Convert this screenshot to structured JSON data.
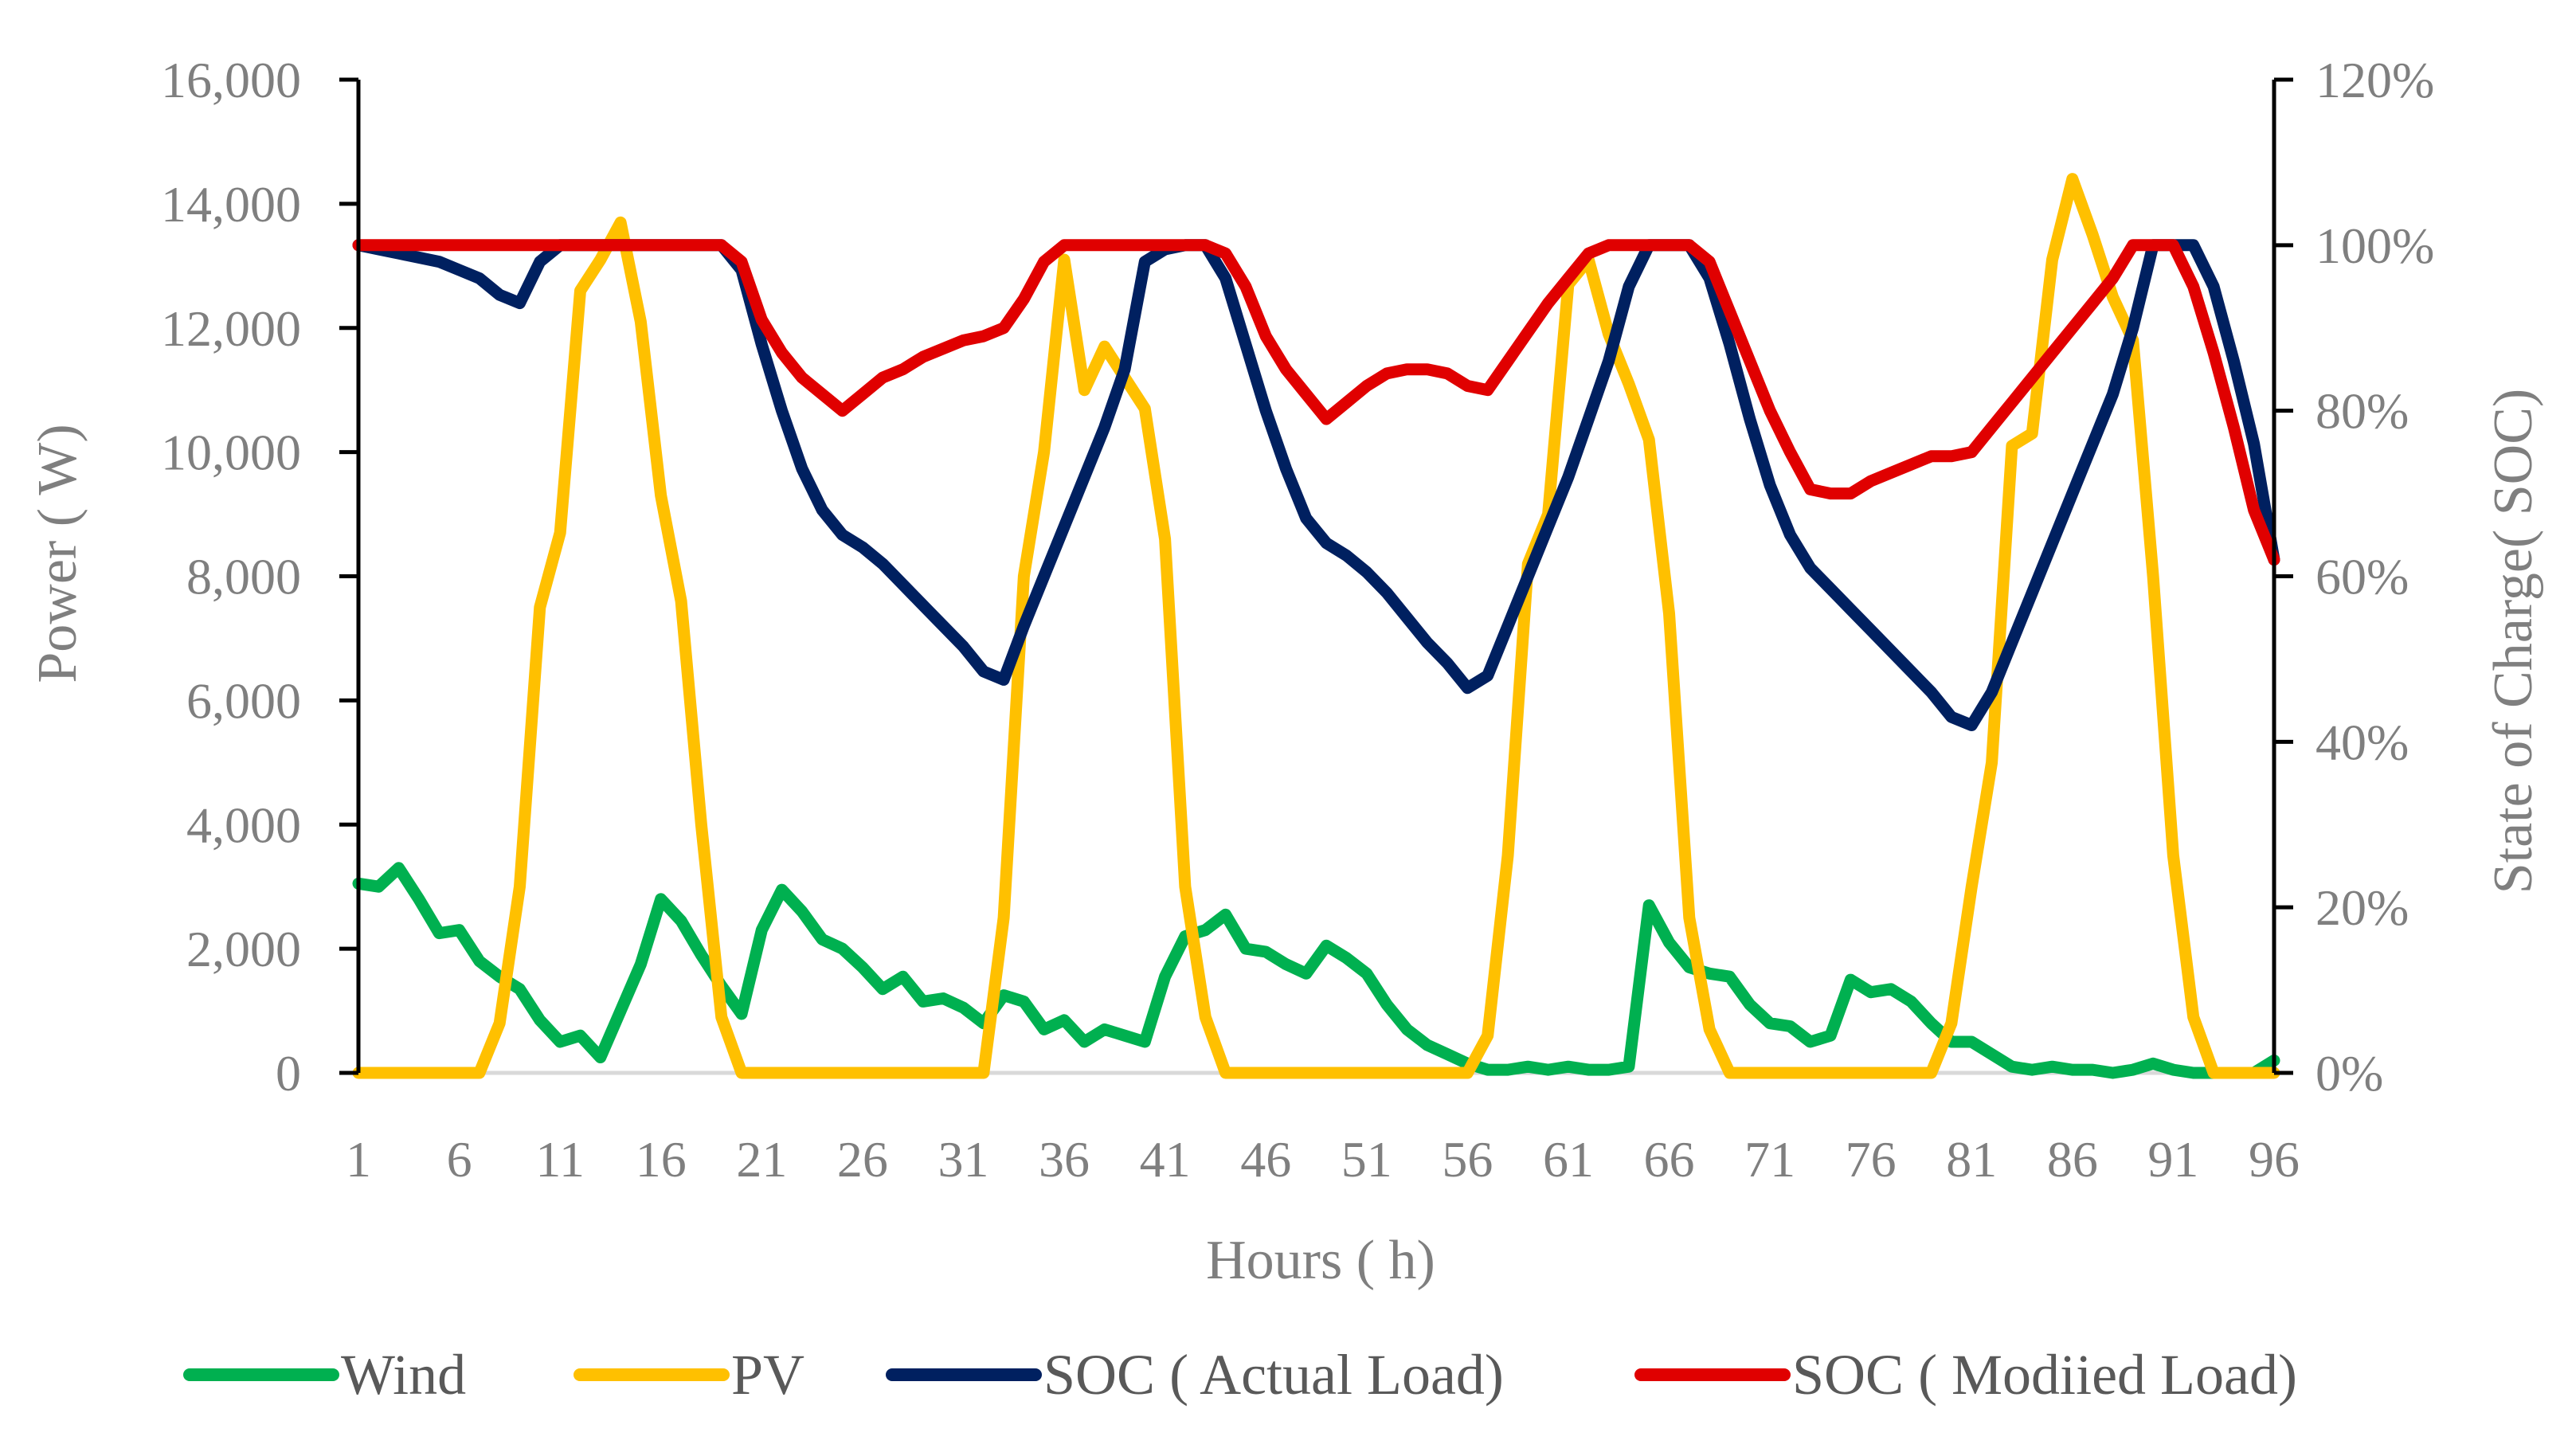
{
  "chart_data": {
    "type": "line",
    "title": "",
    "xlabel": "Hours ( h)",
    "ylabel": "Power ( W)",
    "y2label": "State of Charge( SOC)",
    "xlim": [
      1,
      96
    ],
    "ylim": [
      0,
      16000
    ],
    "y2lim": [
      0,
      120
    ],
    "x_ticks": [
      1,
      6,
      11,
      16,
      21,
      26,
      31,
      36,
      41,
      46,
      51,
      56,
      61,
      66,
      71,
      76,
      81,
      86,
      91,
      96
    ],
    "y_ticks": [
      "0",
      "2,000",
      "4,000",
      "6,000",
      "8,000",
      "10,000",
      "12,000",
      "14,000",
      "16,000"
    ],
    "y2_ticks": [
      "0%",
      "20%",
      "40%",
      "60%",
      "80%",
      "100%",
      "120%"
    ],
    "legend_position": "bottom",
    "colors": {
      "wind": "#00b050",
      "pv": "#ffc000",
      "soc_actual": "#002060",
      "soc_modified": "#e00000",
      "axis": "#000000",
      "baseline": "#d9d9d9"
    },
    "series": [
      {
        "name": "Wind",
        "key": "wind",
        "axis": "left",
        "values": [
          3050,
          3000,
          3300,
          2800,
          2250,
          2300,
          1800,
          1550,
          1350,
          850,
          500,
          600,
          250,
          1000,
          1750,
          2800,
          2450,
          1900,
          1400,
          950,
          2300,
          2950,
          2600,
          2150,
          2000,
          1700,
          1350,
          1550,
          1150,
          1200,
          1050,
          800,
          1250,
          1150,
          700,
          850,
          500,
          700,
          600,
          500,
          1550,
          2200,
          2300,
          2550,
          2000,
          1950,
          1750,
          1600,
          2050,
          1850,
          1600,
          1100,
          700,
          450,
          300,
          150,
          50,
          50,
          100,
          50,
          100,
          50,
          50,
          100,
          2700,
          2100,
          1700,
          1600,
          1550,
          1100,
          800,
          750,
          500,
          600,
          1500,
          1300,
          1350,
          1150,
          800,
          500,
          500,
          300,
          100,
          50,
          100,
          50,
          50,
          0,
          50,
          150,
          50,
          0,
          0,
          0,
          0,
          200
        ]
      },
      {
        "name": "PV",
        "key": "pv",
        "axis": "left",
        "values": [
          0,
          0,
          0,
          0,
          0,
          0,
          0,
          800,
          3000,
          7500,
          8700,
          12600,
          13100,
          13700,
          12100,
          9300,
          7600,
          4000,
          900,
          0,
          0,
          0,
          0,
          0,
          0,
          0,
          0,
          0,
          0,
          0,
          0,
          0,
          2500,
          8000,
          10000,
          13100,
          11000,
          11700,
          11200,
          10700,
          8600,
          3000,
          900,
          0,
          0,
          0,
          0,
          0,
          0,
          0,
          0,
          0,
          0,
          0,
          0,
          0,
          600,
          3500,
          8200,
          9000,
          12700,
          13100,
          11900,
          11100,
          10200,
          7400,
          2500,
          700,
          0,
          0,
          0,
          0,
          0,
          0,
          0,
          0,
          0,
          0,
          0,
          800,
          3000,
          5000,
          10100,
          10300,
          13100,
          14400,
          13500,
          12500,
          11800,
          8000,
          3500,
          900,
          0,
          0,
          0,
          0
        ]
      },
      {
        "name": "SOC ( Actual Load)",
        "key": "soc_actual",
        "axis": "right",
        "values": [
          100,
          99.5,
          99,
          98.5,
          98,
          97,
          96,
          94,
          93,
          98,
          100,
          100,
          100,
          100,
          100,
          100,
          100,
          100,
          100,
          97,
          88,
          80,
          73,
          68,
          65,
          63.5,
          61.5,
          59,
          56.5,
          54,
          51.5,
          48.5,
          47.5,
          54,
          60,
          66,
          72,
          78,
          85,
          98,
          99.5,
          100,
          100,
          96,
          88,
          80,
          73,
          67,
          64,
          62.5,
          60.5,
          58,
          55,
          52,
          49.5,
          46.5,
          48,
          54,
          60,
          66,
          72,
          79,
          86,
          95,
          100,
          100,
          100,
          96,
          88,
          79,
          71,
          65,
          61,
          58.5,
          56,
          53.5,
          51,
          48.5,
          46,
          43,
          42,
          46,
          52,
          58,
          64,
          70,
          76,
          82,
          90,
          100,
          100,
          100,
          95,
          86,
          76,
          62
        ]
      },
      {
        "name": "SOC ( Modiied Load)",
        "key": "soc_modified",
        "axis": "right",
        "values": [
          100,
          100,
          100,
          100,
          100,
          100,
          100,
          100,
          100,
          100,
          100,
          100,
          100,
          100,
          100,
          100,
          100,
          100,
          100,
          98,
          91,
          87,
          84,
          82,
          80,
          82,
          84,
          85,
          86.5,
          87.5,
          88.5,
          89,
          90,
          93.5,
          98,
          100,
          100,
          100,
          100,
          100,
          100,
          100,
          100,
          99,
          95,
          89,
          85,
          82,
          79,
          81,
          83,
          84.5,
          85,
          85,
          84.5,
          83,
          82.5,
          86,
          89.5,
          93,
          96,
          99,
          100,
          100,
          100,
          100,
          100,
          98,
          92,
          86,
          80,
          75,
          70.5,
          70,
          70,
          71.5,
          72.5,
          73.5,
          74.5,
          74.5,
          75,
          78,
          81,
          84,
          87,
          90,
          93,
          96,
          100,
          100,
          100,
          95,
          87,
          78,
          68,
          62
        ]
      }
    ]
  }
}
